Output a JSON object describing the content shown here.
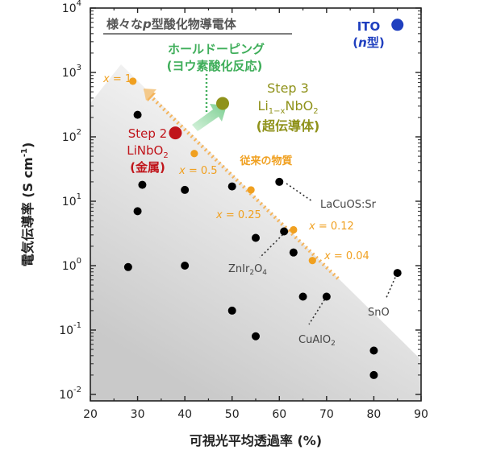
{
  "chart_data": {
    "type": "scatter",
    "title": "様々なp型酸化物導電体",
    "title_parts": {
      "pre": "様々な",
      "italic": "p",
      "post": "型酸化物導電体"
    },
    "xlabel": "可視光平均透過率 (%)",
    "ylabel": "電気伝導率 (S cm⁻¹)",
    "ylabel_parts": {
      "main": "電気伝導率 (S cm",
      "sup": "-1",
      "close": ")"
    },
    "xlim": [
      20,
      90
    ],
    "ylim_log10": [
      -2.1,
      4
    ],
    "y_scale": "log",
    "x_ticks": [
      20,
      30,
      40,
      50,
      60,
      70,
      80,
      90
    ],
    "y_ticks": [
      {
        "base": "10",
        "exp": "-2",
        "value": 0.01
      },
      {
        "base": "10",
        "exp": "-1",
        "value": 0.1
      },
      {
        "base": "10",
        "exp": "0",
        "value": 1
      },
      {
        "base": "10",
        "exp": "1",
        "value": 10
      },
      {
        "base": "10",
        "exp": "2",
        "value": 100
      },
      {
        "base": "10",
        "exp": "3",
        "value": 1000
      },
      {
        "base": "10",
        "exp": "4",
        "value": 10000
      }
    ],
    "grid": false,
    "series": [
      {
        "color": "#000000",
        "points": [
          {
            "x": 28,
            "y": 0.95
          },
          {
            "x": 30,
            "y": 7
          },
          {
            "x": 30,
            "y": 220
          },
          {
            "x": 31,
            "y": 18
          },
          {
            "x": 40,
            "y": 15
          },
          {
            "x": 40,
            "y": 1
          },
          {
            "x": 50,
            "y": 17
          },
          {
            "x": 50,
            "y": 0.2
          },
          {
            "x": 55,
            "y": 2.7
          },
          {
            "x": 55,
            "y": 0.08
          },
          {
            "x": 60,
            "y": 20
          },
          {
            "x": 61,
            "y": 3.4
          },
          {
            "x": 63,
            "y": 1.6
          },
          {
            "x": 65,
            "y": 0.33
          },
          {
            "x": 70,
            "y": 0.33
          },
          {
            "x": 80,
            "y": 0.048
          },
          {
            "x": 80,
            "y": 0.02
          },
          {
            "x": 85,
            "y": 0.77
          }
        ]
      },
      {
        "color": "#f0a020",
        "points": [
          {
            "x": 29,
            "y": 730
          },
          {
            "x": 42,
            "y": 55
          },
          {
            "x": 54,
            "y": 15
          },
          {
            "x": 63,
            "y": 3.6
          },
          {
            "x": 67,
            "y": 1.2
          }
        ]
      }
    ],
    "highlights": [
      {
        "label": "Step 2",
        "x": 38,
        "y": 115,
        "color": "#c0141a"
      },
      {
        "label": "Step 3",
        "x": 48,
        "y": 330,
        "color": "#8f921a"
      },
      {
        "label": "ITO",
        "x": 85,
        "y": 5500,
        "color": "#1f3fbf"
      }
    ],
    "annotations": {
      "ito": {
        "name": "ITO",
        "sub_pre": "(",
        "sub_italic": "n",
        "sub_post": "型)"
      },
      "step2": {
        "line1": "Step 2",
        "line2_pre": "LiNbO",
        "line2_sub": "2",
        "line3": "(金属)"
      },
      "step3": {
        "line1": "Step 3",
        "line2_a": "Li",
        "line2_sub": "1−x",
        "line2_b": "NbO",
        "line2_sub2": "2",
        "line3": "(超伝導体)"
      },
      "hole_doping": {
        "line1": "ホールドーピング",
        "line2": "(ヨウ素酸化反応)"
      },
      "conventional": "従来の物質",
      "x_labels": [
        {
          "var": "x",
          "val": " = 1"
        },
        {
          "var": "x",
          "val": " = 0.5"
        },
        {
          "var": "x",
          "val": " = 0.25"
        },
        {
          "var": "x",
          "val": " = 0.12"
        },
        {
          "var": "x",
          "val": " = 0.04"
        }
      ],
      "lacuos": "LaCuOS:Sr",
      "znir": {
        "pre": "ZnIr",
        "sub": "2",
        "mid": "O",
        "sub2": "4"
      },
      "cualo": {
        "pre": "CuAlO",
        "sub": "2"
      },
      "sno": "SnO"
    }
  }
}
